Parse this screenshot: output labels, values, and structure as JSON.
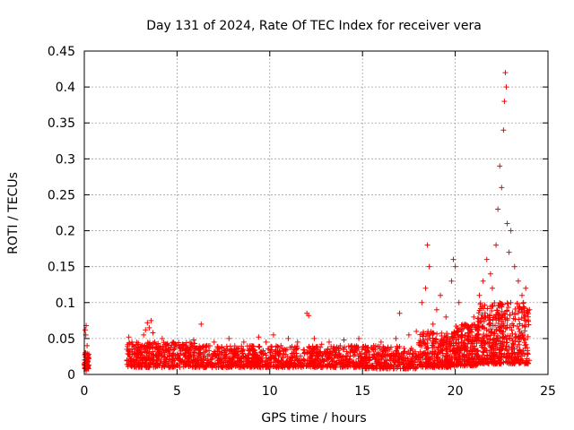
{
  "chart_data": {
    "type": "scatter",
    "title": "Day 131 of 2024, Rate Of TEC Index for receiver vera",
    "xlabel": "GPS time / hours",
    "ylabel": "ROTI / TECUs",
    "xlim": [
      0,
      25
    ],
    "ylim": [
      0,
      0.45
    ],
    "grid": true,
    "marker": "+",
    "color": "#ff0000",
    "x_ticks": [
      0,
      5,
      10,
      15,
      20,
      25
    ],
    "x_tick_labels": [
      "0",
      "5",
      "10",
      "15",
      "20",
      "25"
    ],
    "y_ticks": [
      0,
      0.05,
      0.1,
      0.15,
      0.2,
      0.25,
      0.3,
      0.35,
      0.4,
      0.45
    ],
    "y_tick_labels": [
      "0",
      "0.05",
      "0.1",
      "0.15",
      "0.2",
      "0.25",
      "0.3",
      "0.35",
      "0.4",
      "0.45"
    ],
    "series": [
      {
        "name": "ROTI",
        "points": [
          [
            0.0,
            0.015
          ],
          [
            0.05,
            0.03
          ],
          [
            0.08,
            0.055
          ],
          [
            0.1,
            0.068
          ],
          [
            0.12,
            0.02
          ],
          [
            0.15,
            0.04
          ],
          [
            0.18,
            0.01
          ],
          [
            0.2,
            0.025
          ],
          [
            0.05,
            0.062
          ],
          [
            0.1,
            0.005
          ],
          [
            2.3,
            0.02
          ],
          [
            2.3,
            0.035
          ],
          [
            2.4,
            0.052
          ],
          [
            2.6,
            0.028
          ],
          [
            2.8,
            0.04
          ],
          [
            3.0,
            0.03
          ],
          [
            3.2,
            0.055
          ],
          [
            3.3,
            0.062
          ],
          [
            3.4,
            0.072
          ],
          [
            3.5,
            0.065
          ],
          [
            3.6,
            0.075
          ],
          [
            3.7,
            0.058
          ],
          [
            3.8,
            0.045
          ],
          [
            4.0,
            0.035
          ],
          [
            4.2,
            0.05
          ],
          [
            4.5,
            0.032
          ],
          [
            4.8,
            0.045
          ],
          [
            5.0,
            0.028
          ],
          [
            5.3,
            0.04
          ],
          [
            5.6,
            0.035
          ],
          [
            5.9,
            0.048
          ],
          [
            6.2,
            0.03
          ],
          [
            6.3,
            0.07
          ],
          [
            6.6,
            0.04
          ],
          [
            7.0,
            0.045
          ],
          [
            7.4,
            0.03
          ],
          [
            7.8,
            0.05
          ],
          [
            8.2,
            0.035
          ],
          [
            8.6,
            0.045
          ],
          [
            9.0,
            0.04
          ],
          [
            9.4,
            0.052
          ],
          [
            9.8,
            0.045
          ],
          [
            10.2,
            0.055
          ],
          [
            10.6,
            0.04
          ],
          [
            11.0,
            0.05
          ],
          [
            11.5,
            0.045
          ],
          [
            12.0,
            0.085
          ],
          [
            12.1,
            0.082
          ],
          [
            12.4,
            0.05
          ],
          [
            12.8,
            0.042
          ],
          [
            13.2,
            0.045
          ],
          [
            13.6,
            0.035
          ],
          [
            14.0,
            0.048
          ],
          [
            14.4,
            0.04
          ],
          [
            14.8,
            0.05
          ],
          [
            15.2,
            0.03
          ],
          [
            15.6,
            0.04
          ],
          [
            16.0,
            0.045
          ],
          [
            16.4,
            0.035
          ],
          [
            16.8,
            0.05
          ],
          [
            17.0,
            0.085
          ],
          [
            17.5,
            0.055
          ],
          [
            17.9,
            0.06
          ],
          [
            18.2,
            0.1
          ],
          [
            18.4,
            0.12
          ],
          [
            18.5,
            0.18
          ],
          [
            18.6,
            0.15
          ],
          [
            18.8,
            0.07
          ],
          [
            19.0,
            0.09
          ],
          [
            19.2,
            0.11
          ],
          [
            19.5,
            0.08
          ],
          [
            19.8,
            0.13
          ],
          [
            19.9,
            0.16
          ],
          [
            20.0,
            0.15
          ],
          [
            20.2,
            0.1
          ],
          [
            20.5,
            0.07
          ],
          [
            20.8,
            0.06
          ],
          [
            21.0,
            0.08
          ],
          [
            21.3,
            0.11
          ],
          [
            21.5,
            0.13
          ],
          [
            21.7,
            0.16
          ],
          [
            21.9,
            0.14
          ],
          [
            22.0,
            0.12
          ],
          [
            22.2,
            0.18
          ],
          [
            22.3,
            0.23
          ],
          [
            22.4,
            0.29
          ],
          [
            22.5,
            0.26
          ],
          [
            22.6,
            0.34
          ],
          [
            22.65,
            0.38
          ],
          [
            22.7,
            0.42
          ],
          [
            22.75,
            0.4
          ],
          [
            22.8,
            0.21
          ],
          [
            22.9,
            0.17
          ],
          [
            23.0,
            0.2
          ],
          [
            23.2,
            0.15
          ],
          [
            23.4,
            0.13
          ],
          [
            23.6,
            0.11
          ],
          [
            23.8,
            0.12
          ],
          [
            24.0,
            0.09
          ]
        ]
      }
    ],
    "dense_bands": [
      {
        "x_start": 0.0,
        "x_end": 0.25,
        "y_low": 0.008,
        "y_high": 0.03,
        "count": 60
      },
      {
        "x_start": 2.3,
        "x_end": 6.0,
        "y_low": 0.01,
        "y_high": 0.045,
        "count": 420
      },
      {
        "x_start": 6.0,
        "x_end": 15.0,
        "y_low": 0.01,
        "y_high": 0.04,
        "count": 900
      },
      {
        "x_start": 15.0,
        "x_end": 18.0,
        "y_low": 0.008,
        "y_high": 0.04,
        "count": 300
      },
      {
        "x_start": 18.0,
        "x_end": 20.0,
        "y_low": 0.01,
        "y_high": 0.06,
        "count": 300
      },
      {
        "x_start": 20.0,
        "x_end": 21.2,
        "y_low": 0.012,
        "y_high": 0.07,
        "count": 220
      },
      {
        "x_start": 21.2,
        "x_end": 24.0,
        "y_low": 0.015,
        "y_high": 0.1,
        "count": 500
      }
    ]
  }
}
